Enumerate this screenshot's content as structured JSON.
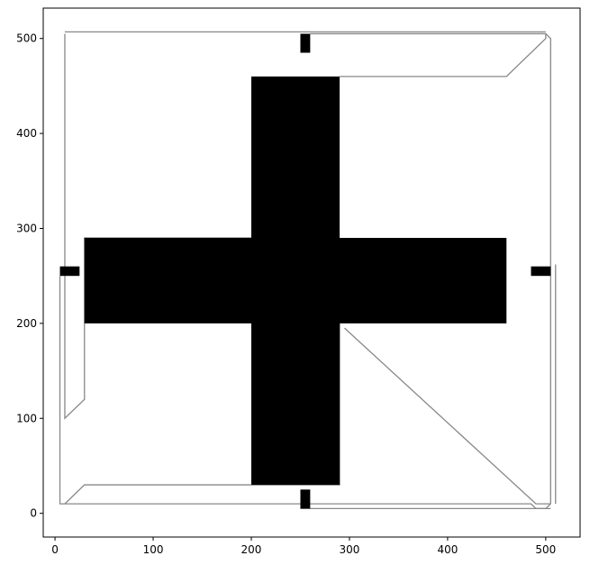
{
  "chart_data": {
    "type": "diagram",
    "title": "",
    "xlabel": "",
    "ylabel": "",
    "xlim": [
      -12,
      535
    ],
    "ylim": [
      -25,
      532
    ],
    "x_ticks": [
      0,
      100,
      200,
      300,
      400,
      500
    ],
    "y_ticks": [
      0,
      100,
      200,
      300,
      400,
      500
    ],
    "x_tick_labels": [
      "0",
      "100",
      "200",
      "300",
      "400",
      "500"
    ],
    "y_tick_labels": [
      "0",
      "100",
      "200",
      "300",
      "400",
      "500"
    ],
    "grid": false,
    "filled_shapes": [
      {
        "name": "cross-vertical-bar",
        "x0": 200,
        "x1": 290,
        "y0": 30,
        "y1": 460,
        "color": "#000000"
      },
      {
        "name": "cross-horizontal-bar",
        "x0": 30,
        "x1": 460,
        "y0": 200,
        "y1": 290,
        "color": "#000000"
      },
      {
        "name": "marker-top",
        "x0": 250,
        "x1": 260,
        "y0": 485,
        "y1": 505,
        "color": "#000000"
      },
      {
        "name": "marker-bottom",
        "x0": 250,
        "x1": 260,
        "y0": 5,
        "y1": 25,
        "color": "#000000"
      },
      {
        "name": "marker-left",
        "x0": 5,
        "x1": 25,
        "y0": 250,
        "y1": 260,
        "color": "#000000"
      },
      {
        "name": "marker-right",
        "x0": 485,
        "x1": 505,
        "y0": 250,
        "y1": 260,
        "color": "#000000"
      }
    ],
    "outline_paths": [
      {
        "name": "outline-top-edge",
        "points": [
          [
            10,
            507
          ],
          [
            500,
            507
          ]
        ],
        "color": "#888888"
      },
      {
        "name": "outline-left-edge",
        "points": [
          [
            10,
            505
          ],
          [
            10,
            100
          ],
          [
            30,
            120
          ],
          [
            30,
            290
          ],
          [
            200,
            290
          ]
        ],
        "color": "#888888"
      },
      {
        "name": "outline-left-lower",
        "points": [
          [
            5,
            250
          ],
          [
            5,
            10
          ],
          [
            10,
            10
          ]
        ],
        "color": "#888888"
      },
      {
        "name": "outline-bottom-edge",
        "points": [
          [
            10,
            10
          ],
          [
            485,
            10
          ],
          [
            490,
            5
          ],
          [
            505,
            5
          ]
        ],
        "color": "#888888"
      },
      {
        "name": "outline-bottom-inner",
        "points": [
          [
            10,
            10
          ],
          [
            30,
            30
          ],
          [
            290,
            30
          ],
          [
            290,
            200
          ]
        ],
        "color": "#888888"
      },
      {
        "name": "outline-top-right",
        "points": [
          [
            260,
            505
          ],
          [
            500,
            505
          ],
          [
            505,
            500
          ],
          [
            505,
            10
          ]
        ],
        "color": "#888888"
      },
      {
        "name": "outline-top-diagonal",
        "points": [
          [
            290,
            460
          ],
          [
            460,
            460
          ],
          [
            500,
            500
          ],
          [
            500,
            505
          ]
        ],
        "color": "#888888"
      },
      {
        "name": "outline-right-diagonal",
        "points": [
          [
            295,
            195
          ],
          [
            490,
            10
          ],
          [
            505,
            10
          ]
        ],
        "color": "#888888"
      },
      {
        "name": "outline-right-edge",
        "points": [
          [
            510,
            262
          ],
          [
            510,
            10
          ]
        ],
        "color": "#888888"
      },
      {
        "name": "outline-bottom-right",
        "points": [
          [
            250,
            5
          ],
          [
            500,
            5
          ],
          [
            505,
            10
          ]
        ],
        "color": "#888888"
      }
    ]
  }
}
